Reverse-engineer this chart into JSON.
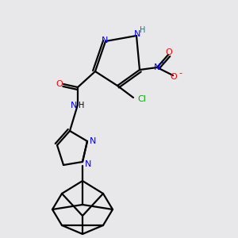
{
  "bg_color": "#e8e8ea",
  "atom_colors": {
    "C": "#000000",
    "N": "#0000ff",
    "O": "#ff0000",
    "Cl": "#00aa00",
    "H": "#008080"
  },
  "bond_color": "#000000",
  "bond_width": 1.6,
  "fig_size": [
    3.0,
    3.0
  ],
  "dpi": 100
}
